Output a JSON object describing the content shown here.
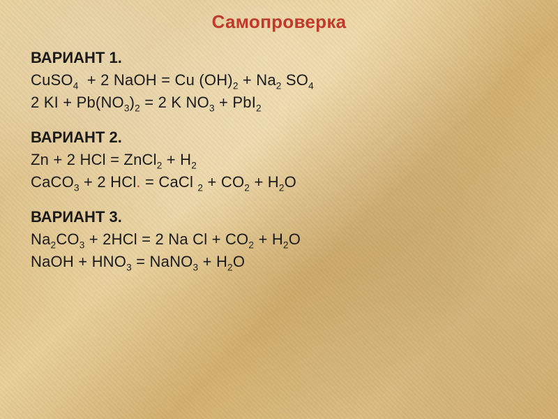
{
  "background": {
    "base_colors": [
      "#e3c98f",
      "#d9b978",
      "#e7cf9a",
      "#d2b071",
      "#e0c488",
      "#d6b476"
    ],
    "highlight": "rgba(255,255,255,0.35)",
    "shadow": "rgba(120,80,40,0.15)"
  },
  "title": {
    "text": "Самопроверка",
    "color": "#c0392b",
    "font_size": 26,
    "font_weight": 700,
    "align": "center"
  },
  "text_color": "#1a1a1a",
  "body_font_size": 22,
  "variants": [
    {
      "label": "ВАРИАНТ 1.",
      "equations": [
        {
          "tokens": [
            {
              "t": "CuSO"
            },
            {
              "sub": "4"
            },
            {
              "sp": 6
            },
            {
              "t": " +  2 NaOH  = Cu (OH)"
            },
            {
              "sub": "2"
            },
            {
              "t": "  + Na"
            },
            {
              "sub": "2"
            },
            {
              "t": " SO"
            },
            {
              "sub": "4"
            }
          ]
        },
        {
          "tokens": [
            {
              "t": "2 KI +   Pb(NO"
            },
            {
              "sub": "3"
            },
            {
              "t": ")"
            },
            {
              "sub": "2"
            },
            {
              "t": "  = 2 K NO"
            },
            {
              "sub": "3"
            },
            {
              "t": " +   PbI"
            },
            {
              "sub": "2"
            }
          ]
        }
      ]
    },
    {
      "label": "ВАРИАНТ 2.",
      "equations": [
        {
          "tokens": [
            {
              "t": " Zn + 2 HCl = ZnCl"
            },
            {
              "sub": "2"
            },
            {
              "t": " +  H"
            },
            {
              "sub": "2"
            }
          ]
        },
        {
          "tokens": [
            {
              "t": "CaCO"
            },
            {
              "sub": "3"
            },
            {
              "t": " + 2 HCl"
            },
            {
              "t": ". ",
              "cls": "red"
            },
            {
              "t": "= CaCl "
            },
            {
              "sub": "2"
            },
            {
              "t": "  + CO"
            },
            {
              "sub": "2"
            },
            {
              "t": " +  H"
            },
            {
              "sub": "2"
            },
            {
              "t": "O"
            }
          ]
        }
      ]
    },
    {
      "label": "ВАРИАНТ 3.",
      "equations": [
        {
          "tokens": [
            {
              "t": "Na"
            },
            {
              "sub": "2"
            },
            {
              "t": "CO"
            },
            {
              "sub": "3"
            },
            {
              "t": "  + 2HCl =   2 Na Cl  + CO"
            },
            {
              "sub": "2"
            },
            {
              "t": " +  H"
            },
            {
              "sub": "2"
            },
            {
              "t": "O"
            }
          ]
        },
        {
          "tokens": [
            {
              "t": "NaOH + HNO"
            },
            {
              "sub": "3"
            },
            {
              "t": "  = NaNO"
            },
            {
              "sub": "3"
            },
            {
              "t": " +  H"
            },
            {
              "sub": "2"
            },
            {
              "t": "O"
            }
          ]
        }
      ]
    }
  ]
}
